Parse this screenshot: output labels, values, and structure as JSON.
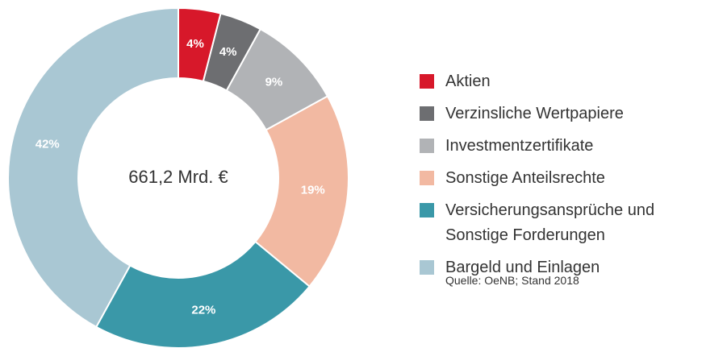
{
  "chart_data": {
    "type": "donut",
    "categories": [
      "Aktien",
      "Verzinsliche Wertpapiere",
      "Investmentzertifikate",
      "Sonstige Anteilsrechte",
      "Versicherungsansprüche und Sonstige Forderungen",
      "Bargeld und Einlagen"
    ],
    "values": [
      4,
      4,
      9,
      19,
      22,
      42
    ],
    "value_labels": [
      "4%",
      "4%",
      "9%",
      "19%",
      "22%",
      "42%"
    ],
    "colors": [
      "#d7182a",
      "#6d6e71",
      "#b1b3b6",
      "#f2b9a2",
      "#3a98a8",
      "#a9c7d3"
    ],
    "center_label": "661,2 Mrd. €",
    "source": "Quelle: OeNB; Stand 2018"
  }
}
